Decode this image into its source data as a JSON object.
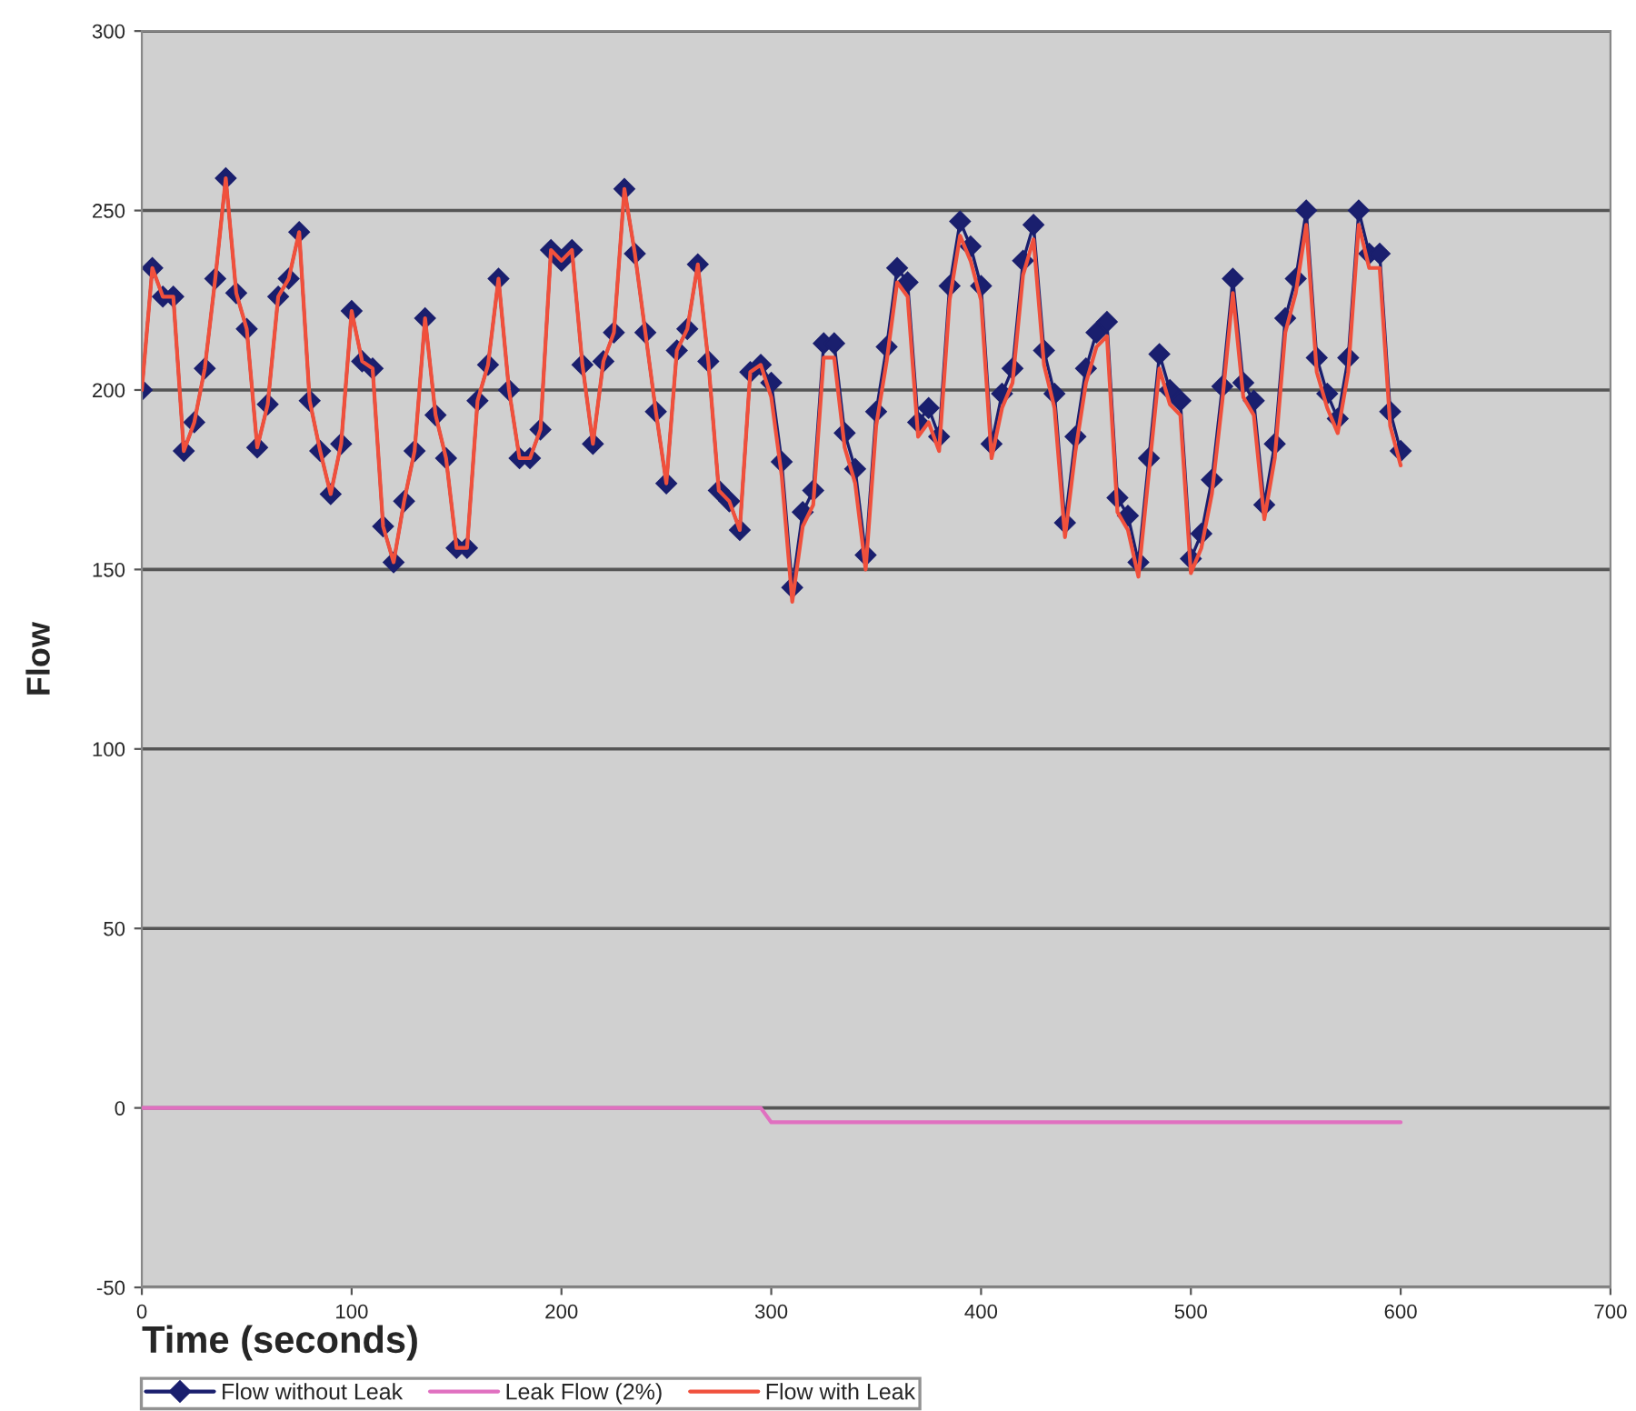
{
  "chart_data": {
    "type": "line",
    "xlabel": "Time (seconds)",
    "ylabel": "Flow",
    "x": [
      0,
      5,
      10,
      15,
      20,
      25,
      30,
      35,
      40,
      45,
      50,
      55,
      60,
      65,
      70,
      75,
      80,
      85,
      90,
      95,
      100,
      105,
      110,
      115,
      120,
      125,
      130,
      135,
      140,
      145,
      150,
      155,
      160,
      165,
      170,
      175,
      180,
      185,
      190,
      195,
      200,
      205,
      210,
      215,
      220,
      225,
      230,
      235,
      240,
      245,
      250,
      255,
      260,
      265,
      270,
      275,
      280,
      285,
      290,
      295,
      300,
      305,
      310,
      315,
      320,
      325,
      330,
      335,
      340,
      345,
      350,
      355,
      360,
      365,
      370,
      375,
      380,
      385,
      390,
      395,
      400,
      405,
      410,
      415,
      420,
      425,
      430,
      435,
      440,
      445,
      450,
      455,
      460,
      465,
      470,
      475,
      480,
      485,
      490,
      495,
      500,
      505,
      510,
      515,
      520,
      525,
      530,
      535,
      540,
      545,
      550,
      555,
      560,
      565,
      570,
      575,
      580,
      585,
      590,
      595,
      600
    ],
    "xlim": [
      0,
      700
    ],
    "xticks": [
      0,
      100,
      200,
      300,
      400,
      500,
      600,
      700
    ],
    "ylim": [
      -50,
      300
    ],
    "yticks": [
      -50,
      0,
      50,
      100,
      150,
      200,
      250,
      300
    ],
    "grid": "y",
    "legend": "bottom",
    "series": [
      {
        "name": "Flow without Leak",
        "color": "#1a1f6e",
        "marker": "diamond",
        "values": [
          200,
          234,
          226,
          226,
          183,
          191,
          206,
          231,
          259,
          227,
          217,
          184,
          196,
          226,
          231,
          244,
          197,
          183,
          171,
          185,
          222,
          208,
          206,
          162,
          152,
          169,
          183,
          220,
          193,
          181,
          156,
          156,
          197,
          207,
          231,
          200,
          181,
          181,
          189,
          239,
          236,
          239,
          207,
          185,
          208,
          216,
          256,
          238,
          216,
          194,
          174,
          211,
          217,
          235,
          208,
          172,
          169,
          161,
          205,
          207,
          202,
          180,
          145,
          166,
          172,
          213,
          213,
          188,
          178,
          154,
          194,
          212,
          234,
          230,
          191,
          195,
          187,
          229,
          247,
          240,
          229,
          185,
          199,
          206,
          236,
          246,
          211,
          199,
          163,
          187,
          206,
          216,
          219,
          170,
          165,
          152,
          181,
          210,
          200,
          197,
          153,
          160,
          175,
          201,
          231,
          202,
          197,
          168,
          185,
          220,
          231,
          250,
          209,
          199,
          192,
          209,
          250,
          238,
          238,
          194,
          183
        ]
      },
      {
        "name": "Leak Flow (2%)",
        "color": "#e070c0",
        "marker": "none",
        "x": [
          0,
          295,
          300,
          600
        ],
        "values": [
          0,
          0,
          -4,
          -4
        ]
      },
      {
        "name": "Flow with Leak",
        "color": "#f0503c",
        "marker": "none",
        "values": [
          200,
          234,
          226,
          226,
          183,
          191,
          206,
          231,
          259,
          227,
          217,
          184,
          196,
          226,
          231,
          244,
          197,
          183,
          171,
          185,
          222,
          208,
          206,
          162,
          152,
          169,
          183,
          220,
          193,
          181,
          156,
          156,
          197,
          207,
          231,
          200,
          181,
          181,
          189,
          239,
          236,
          239,
          207,
          185,
          208,
          216,
          256,
          238,
          216,
          194,
          174,
          211,
          217,
          235,
          208,
          172,
          169,
          161,
          205,
          207,
          198,
          176,
          141,
          162,
          168,
          209,
          209,
          184,
          174,
          150,
          190,
          208,
          230,
          226,
          187,
          191,
          183,
          225,
          243,
          236,
          225,
          181,
          195,
          202,
          232,
          242,
          207,
          195,
          159,
          183,
          202,
          212,
          215,
          166,
          161,
          148,
          177,
          206,
          196,
          193,
          149,
          156,
          171,
          197,
          227,
          198,
          193,
          164,
          181,
          216,
          227,
          246,
          205,
          195,
          188,
          205,
          246,
          234,
          234,
          190,
          179
        ]
      }
    ]
  }
}
